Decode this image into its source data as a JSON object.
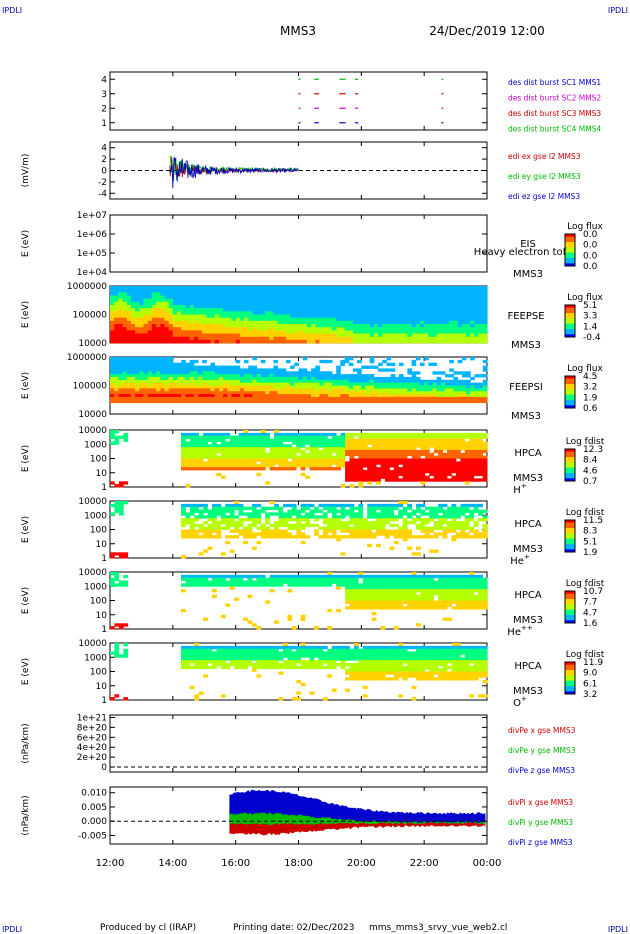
{
  "header": {
    "corner_label": "IPDLI",
    "spacecraft": "MMS3",
    "date": "24/Dec/2019 12:00"
  },
  "footer": {
    "produced_by": "Produced by cl (IRAP)",
    "printing_date": "Printing date: 02/Dec/2023",
    "script_name": "mms_mms3_srvy_vue_web2.cl"
  },
  "colors": {
    "spectrogram": [
      "#ffffff",
      "#0000ff",
      "#00b4ff",
      "#00ff80",
      "#b4ff00",
      "#ffd200",
      "#ff6400",
      "#ff0000"
    ]
  },
  "chart_data": [
    {
      "type": "scatter",
      "ylim": [
        0.5,
        4.5
      ],
      "yticks": [
        "4",
        "3",
        "2",
        "1"
      ],
      "series": [
        {
          "name": "des dist burst SC1 MMS1",
          "color": "#0000cc",
          "y": 1
        },
        {
          "name": "des dist burst SC2 MMS2",
          "color": "#cc00cc",
          "y": 2
        },
        {
          "name": "des dist burst SC3 MMS3",
          "color": "#cc0000",
          "y": 3
        },
        {
          "name": "des dist burst SC4 MMS4",
          "color": "#00bb00",
          "y": 4
        }
      ],
      "burst_intervals_hours": [
        [
          18.0,
          18.04
        ],
        [
          18.5,
          18.65
        ],
        [
          19.3,
          19.5
        ],
        [
          19.8,
          19.9
        ],
        [
          22.55,
          22.6
        ]
      ]
    },
    {
      "type": "line",
      "ylabel": "(mV/m)",
      "ylim": [
        -5,
        5
      ],
      "yticks": [
        "4",
        "2",
        "0",
        "-2",
        "-4"
      ],
      "series": [
        {
          "name": "edi ex gse l2 MMS3",
          "color": "#cc0000"
        },
        {
          "name": "edi ey gse l2 MMS3",
          "color": "#00bb00"
        },
        {
          "name": "edi ez gse l2 MMS3",
          "color": "#0000cc"
        }
      ],
      "data_span_hours": [
        13.9,
        18.0
      ]
    },
    {
      "type": "heatmap",
      "ylabel": "E (eV)",
      "yticks": [
        "1e+07",
        "1e+06",
        "1e+05",
        "1e+04"
      ],
      "instrument": "EIS",
      "species": "Heavy electron tof",
      "spacecraft": "MMS3",
      "colorbar": {
        "title": "Log flux",
        "ticks": [
          "0.0",
          "0.0",
          "0.0",
          "0.0"
        ]
      }
    },
    {
      "type": "heatmap",
      "ylabel": "E (eV)",
      "yticks": [
        "1000000",
        "100000",
        "10000"
      ],
      "instrument": "FEEPSE",
      "spacecraft": "MMS3",
      "colorbar": {
        "title": "Log flux",
        "ticks": [
          "5.1",
          "3.3",
          "1.4",
          "-0.4"
        ]
      }
    },
    {
      "type": "heatmap",
      "ylabel": "E (eV)",
      "yticks": [
        "1000000",
        "100000",
        "10000"
      ],
      "instrument": "FEEPSI",
      "spacecraft": "MMS3",
      "colorbar": {
        "title": "Log flux",
        "ticks": [
          "4.5",
          "3.2",
          "1.9",
          "0.6"
        ]
      }
    },
    {
      "type": "heatmap",
      "ylabel": "E (eV)",
      "yticks": [
        "10000",
        "1000",
        "100",
        "10",
        "1"
      ],
      "instrument": "HPCA",
      "spacecraft": "MMS3",
      "species": "H",
      "species_sup": "+",
      "colorbar": {
        "title": "Log fdist",
        "ticks": [
          "12.3",
          "8.4",
          "4.6",
          "0.7"
        ]
      }
    },
    {
      "type": "heatmap",
      "ylabel": "E (eV)",
      "yticks": [
        "10000",
        "1000",
        "100",
        "10",
        "1"
      ],
      "instrument": "HPCA",
      "spacecraft": "MMS3",
      "species": "He",
      "species_sup": "+",
      "colorbar": {
        "title": "Log fdist",
        "ticks": [
          "11.5",
          "8.3",
          "5.1",
          "1.9"
        ]
      }
    },
    {
      "type": "heatmap",
      "ylabel": "E (eV)",
      "yticks": [
        "10000",
        "1000",
        "100",
        "10",
        "1"
      ],
      "instrument": "HPCA",
      "spacecraft": "MMS3",
      "species": "He",
      "species_sup": "++",
      "colorbar": {
        "title": "Log fdist",
        "ticks": [
          "10.7",
          "7.7",
          "4.7",
          "1.6"
        ]
      }
    },
    {
      "type": "heatmap",
      "ylabel": "E (eV)",
      "yticks": [
        "10000",
        "1000",
        "100",
        "10",
        "1"
      ],
      "instrument": "HPCA",
      "spacecraft": "MMS3",
      "species": "O",
      "species_sup": "+",
      "colorbar": {
        "title": "Log fdist",
        "ticks": [
          "11.9",
          "9.0",
          "6.1",
          "3.2"
        ]
      }
    },
    {
      "type": "line",
      "ylabel": "(nPa/km)",
      "ylim": [
        -1e+20,
        1.05e+21
      ],
      "yticks": [
        "1e+21",
        "8e+20",
        "6e+20",
        "4e+20",
        "2e+20",
        "0"
      ],
      "series": [
        {
          "name": "divPe x gse MMS3",
          "color": "#cc0000"
        },
        {
          "name": "divPe y gse MMS3",
          "color": "#00bb00"
        },
        {
          "name": "divPe z gse MMS3",
          "color": "#0000cc"
        }
      ]
    },
    {
      "type": "line",
      "ylabel": "(nPa/km)",
      "ylim": [
        -0.008,
        0.012
      ],
      "yticks": [
        "0.010",
        "0.005",
        "0.000",
        "-0.005"
      ],
      "series": [
        {
          "name": "divPi x gse MMS3",
          "color": "#cc0000"
        },
        {
          "name": "divPi y gse MMS3",
          "color": "#00bb00"
        },
        {
          "name": "divPi z gse MMS3",
          "color": "#0000cc"
        }
      ],
      "data_span_hours": [
        15.8,
        24.0
      ]
    }
  ],
  "time_axis": {
    "range_hours": [
      12,
      24
    ],
    "tick_labels": [
      "12:00",
      "14:00",
      "16:00",
      "18:00",
      "20:00",
      "22:00",
      "00:00"
    ]
  }
}
